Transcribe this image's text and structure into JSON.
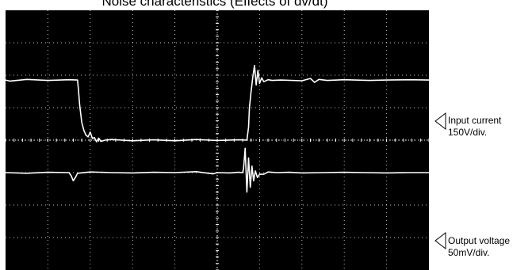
{
  "chart_data": {
    "type": "line",
    "title": "Noise characteristics  (Effects of dv/dt)",
    "xlabel": "",
    "ylabel": "",
    "grid": true,
    "divisions": {
      "x": 10,
      "y": 8
    },
    "colors": {
      "background": "#000000",
      "grid": "#ffffff",
      "trace": "#ffffff"
    },
    "series": [
      {
        "name": "Input current",
        "scale": "150V/div.",
        "x": [
          0,
          0.1,
          0.5,
          1.0,
          1.5,
          1.7,
          1.72,
          1.75,
          1.8,
          1.85,
          1.9,
          1.95,
          2.0,
          2.05,
          2.1,
          2.15,
          2.2,
          2.25,
          2.35,
          2.5,
          3.0,
          3.5,
          4.0,
          4.5,
          5.0,
          5.5,
          5.7,
          5.74,
          5.76,
          5.8,
          5.84,
          5.88,
          5.92,
          5.96,
          6.0,
          6.05,
          6.1,
          6.2,
          6.3,
          6.5,
          7.0,
          7.2,
          7.3,
          7.4,
          7.6,
          8.0,
          8.6,
          9.0,
          9.5,
          10.0
        ],
        "y": [
          1.85,
          1.82,
          1.87,
          1.84,
          1.86,
          1.85,
          1.6,
          1.1,
          0.55,
          0.3,
          0.15,
          0.1,
          0.25,
          0.05,
          0.08,
          -0.05,
          0.06,
          -0.04,
          0.0,
          0.02,
          -0.02,
          0.01,
          -0.02,
          0.02,
          -0.01,
          0.01,
          0.0,
          0.4,
          1.0,
          1.5,
          1.95,
          2.3,
          1.7,
          2.15,
          1.75,
          1.92,
          1.8,
          1.86,
          1.84,
          1.85,
          1.83,
          1.9,
          1.78,
          1.87,
          1.84,
          1.86,
          1.84,
          1.85,
          1.86,
          1.85
        ]
      },
      {
        "name": "Output voltage",
        "scale": "50mV/div.",
        "x": [
          0,
          0.5,
          1.0,
          1.5,
          1.55,
          1.6,
          1.65,
          1.7,
          2.0,
          2.5,
          3.0,
          3.5,
          4.0,
          4.5,
          4.9,
          5.0,
          5.3,
          5.5,
          5.6,
          5.62,
          5.66,
          5.7,
          5.74,
          5.78,
          5.82,
          5.86,
          5.9,
          5.95,
          6.0,
          6.1,
          6.2,
          6.4,
          6.7,
          7.0,
          7.5,
          8.0,
          8.5,
          9.0,
          9.5,
          10.0
        ],
        "y": [
          -1.0,
          -1.02,
          -0.99,
          -1.0,
          -1.1,
          -1.25,
          -1.15,
          -1.02,
          -0.98,
          -1.0,
          -1.01,
          -0.99,
          -1.0,
          -0.97,
          -1.04,
          -1.0,
          -1.01,
          -0.99,
          -1.0,
          -0.9,
          -0.25,
          -1.6,
          -0.55,
          -1.45,
          -0.8,
          -1.25,
          -0.95,
          -1.15,
          -1.05,
          -1.05,
          -0.98,
          -1.0,
          -0.99,
          -1.01,
          -1.0,
          -0.99,
          -1.0,
          -1.01,
          -1.0,
          -1.0
        ]
      }
    ],
    "annotations": [
      {
        "series": "Input current",
        "line1": "Input current",
        "line2": "150V/div."
      },
      {
        "series": "Output voltage",
        "line1": "Output voltage",
        "line2": "50mV/div."
      }
    ]
  }
}
